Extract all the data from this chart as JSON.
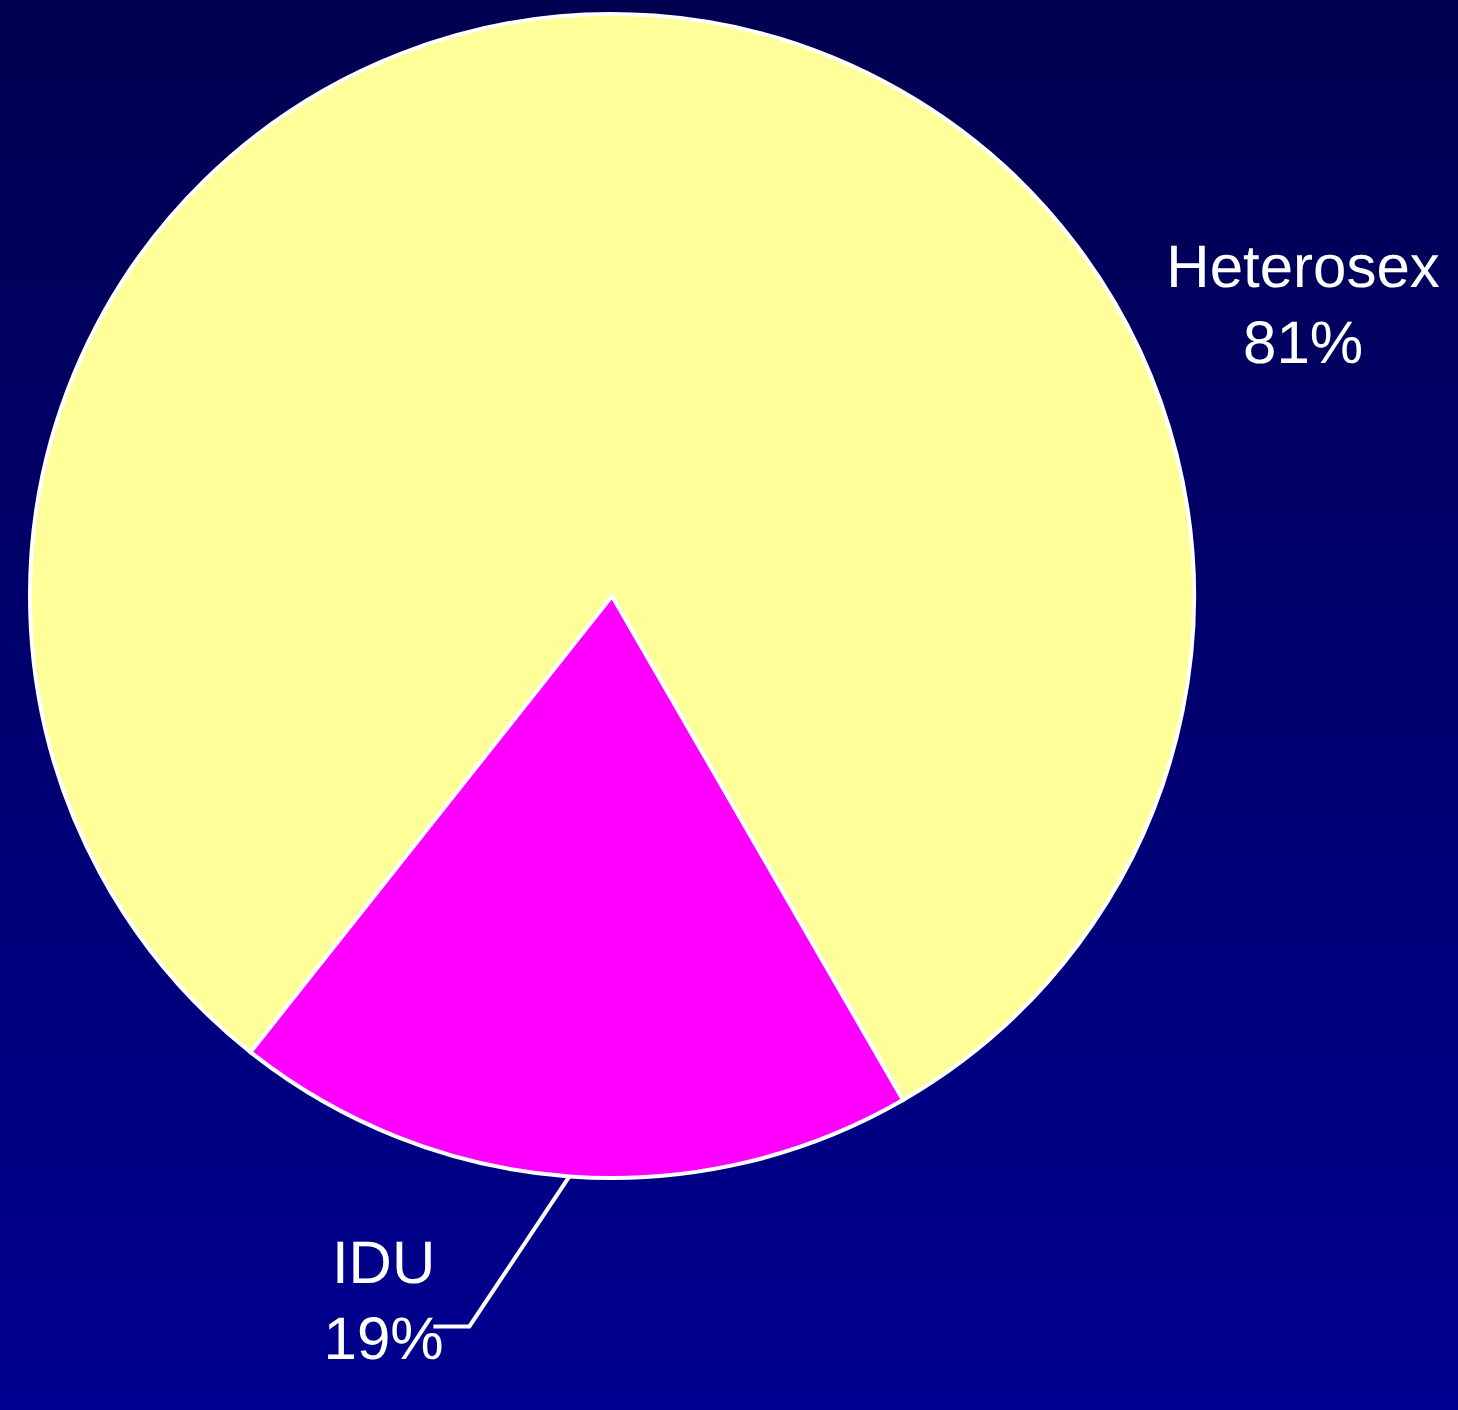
{
  "chart_data": {
    "type": "pie",
    "categories": [
      "Heterosex",
      "IDU"
    ],
    "values": [
      81,
      19
    ],
    "colors": [
      "#ffff99",
      "#ff00ff"
    ],
    "value_labels": [
      "81%",
      "19%"
    ]
  }
}
